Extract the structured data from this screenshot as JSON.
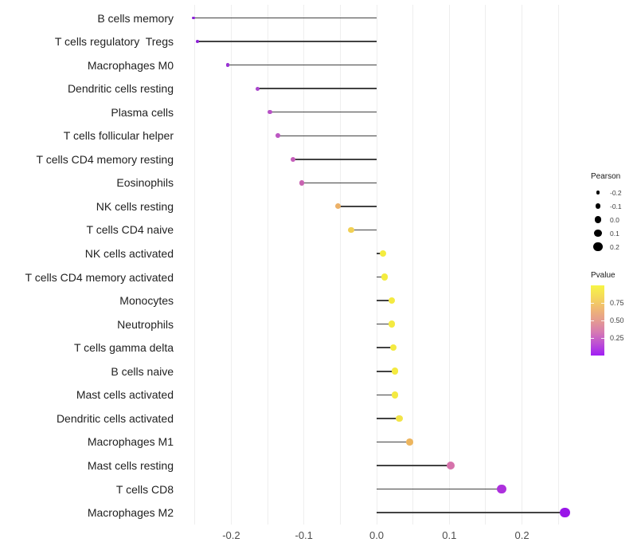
{
  "chart_data": {
    "type": "scatter",
    "subtype": "lollipop",
    "title": "",
    "xlabel": "",
    "ylabel": "",
    "x_tick_labels": [
      "-0.2",
      "-0.1",
      "0.0",
      "0.1",
      "0.2"
    ],
    "x_ticks": [
      -0.2,
      -0.1,
      0.0,
      0.1,
      0.2
    ],
    "xlim": [
      -0.262,
      0.268
    ],
    "grid": {
      "on": true,
      "step": 0.05,
      "range": [
        -0.25,
        0.25
      ],
      "color": "#eeeeee"
    },
    "categories": [
      "B cells memory",
      "T cells regulatory  Tregs",
      "Macrophages M0",
      "Dendritic cells resting",
      "Plasma cells",
      "T cells follicular helper",
      "T cells CD4 memory resting",
      "Eosinophils",
      "NK cells resting",
      "T cells CD4 naive",
      "NK cells activated",
      "T cells CD4 memory activated",
      "Monocytes",
      "Neutrophils",
      "T cells gamma delta",
      "B cells naive",
      "Mast cells activated",
      "Dendritic cells activated",
      "Macrophages M1",
      "Mast cells resting",
      "T cells CD8",
      "Macrophages M2"
    ],
    "series": [
      {
        "name": "Pearson",
        "values": [
          -0.252,
          -0.246,
          -0.205,
          -0.164,
          -0.147,
          -0.136,
          -0.115,
          -0.103,
          -0.053,
          -0.035,
          0.009,
          0.011,
          0.021,
          0.021,
          0.023,
          0.025,
          0.025,
          0.031,
          0.045,
          0.102,
          0.172,
          0.259
        ]
      },
      {
        "name": "Pvalue",
        "values": [
          0.1,
          0.11,
          0.15,
          0.24,
          0.29,
          0.32,
          0.38,
          0.41,
          0.66,
          0.77,
          0.85,
          0.85,
          0.84,
          0.84,
          0.84,
          0.84,
          0.84,
          0.81,
          0.66,
          0.42,
          0.18,
          0.08
        ]
      }
    ],
    "point_colors": [
      "#8b1fd8",
      "#8e22d6",
      "#9933d4",
      "#aa46cd",
      "#b751c6",
      "#bc57c2",
      "#c45db9",
      "#c863b1",
      "#ecb168",
      "#f1d054",
      "#f4ec3f",
      "#f4ec3f",
      "#f4ea41",
      "#f4ea41",
      "#f4ea41",
      "#f4ea41",
      "#f4ea41",
      "#f2e447",
      "#edb55e",
      "#d672ab",
      "#ad30dd",
      "#9916e8"
    ],
    "stem_color": "#424242",
    "background": "#ffffff",
    "legend_position": "right",
    "legends": {
      "size": {
        "title": "Pearson",
        "labels": [
          "-0.2",
          "-0.1",
          "0.0",
          "0.1",
          "0.2"
        ],
        "values": [
          -0.2,
          -0.1,
          0.0,
          0.1,
          0.2
        ],
        "dot_color": "#000000"
      },
      "color": {
        "title": "Pvalue",
        "labels": [
          "0.75",
          "0.50",
          "0.25"
        ],
        "values": [
          0.75,
          0.5,
          0.25
        ],
        "scale_range": [
          0.0,
          1.0
        ],
        "gradient_top_to_bottom": [
          "#f6f545",
          "#f5d95a",
          "#efb873",
          "#e59c90",
          "#d67ab2",
          "#bc4fd4",
          "#a01ef5"
        ]
      }
    }
  }
}
